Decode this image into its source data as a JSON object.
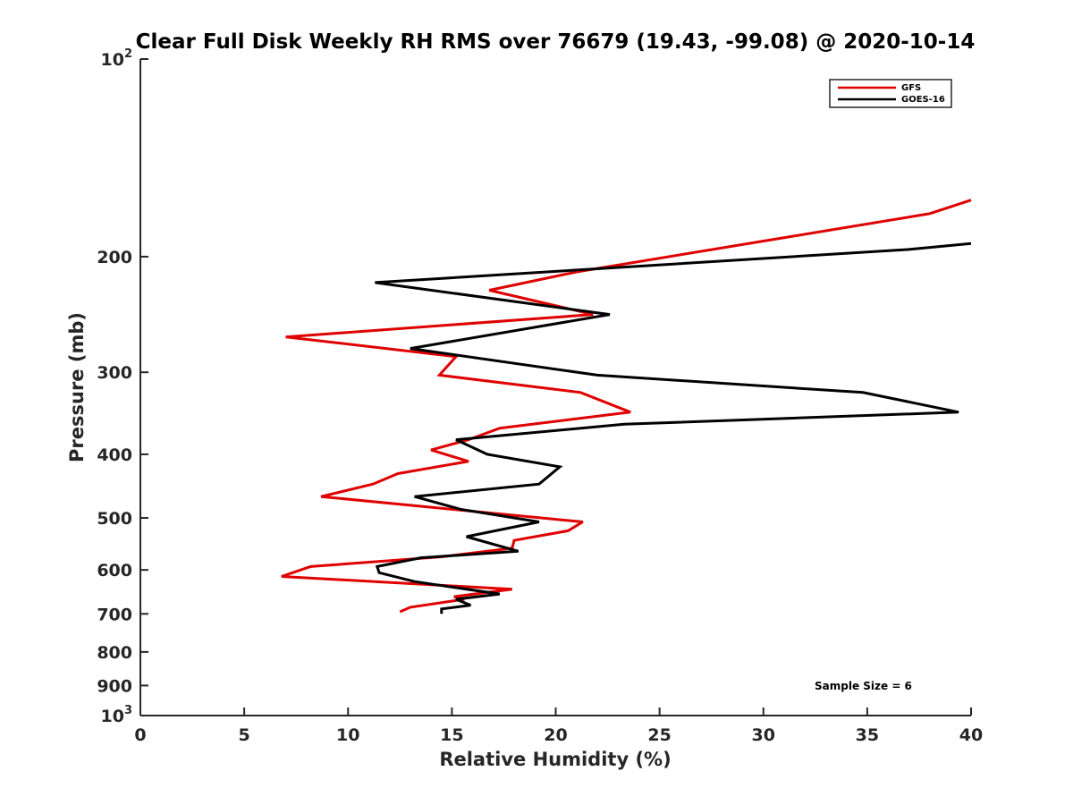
{
  "chart_data": {
    "type": "line",
    "title": "Clear Full Disk Weekly RH RMS over 76679 (19.43, -99.08) @ 2020-10-14",
    "xlabel": "Relative Humidity (%)",
    "ylabel": "Pressure (mb)",
    "xlim": [
      0,
      40
    ],
    "ylim": [
      100,
      1000
    ],
    "y_scale": "log",
    "y_reversed": true,
    "grid": false,
    "x_ticks": [
      "0",
      "5",
      "10",
      "15",
      "20",
      "25",
      "30",
      "35",
      "40"
    ],
    "y_ticks": [
      {
        "value": 100,
        "base": "10",
        "exp": "2"
      },
      {
        "value": 200,
        "label": "200"
      },
      {
        "value": 300,
        "label": "300"
      },
      {
        "value": 400,
        "label": "400"
      },
      {
        "value": 500,
        "label": "500"
      },
      {
        "value": 600,
        "label": "600"
      },
      {
        "value": 700,
        "label": "700"
      },
      {
        "value": 800,
        "label": "800"
      },
      {
        "value": 900,
        "label": "900"
      },
      {
        "value": 1000,
        "base": "10",
        "exp": "3"
      }
    ],
    "legend_position": "top-right",
    "series": [
      {
        "name": "GFS",
        "color": "#e00000",
        "points": [
          [
            40,
            164
          ],
          [
            38,
            172
          ],
          [
            21,
            211
          ],
          [
            16.8,
            225
          ],
          [
            21.8,
            245
          ],
          [
            7,
            265
          ],
          [
            15.2,
            284
          ],
          [
            14.4,
            303
          ],
          [
            21.2,
            322
          ],
          [
            23.6,
            345
          ],
          [
            17.3,
            365
          ],
          [
            15.8,
            380
          ],
          [
            14,
            394
          ],
          [
            15.8,
            410
          ],
          [
            12.4,
            428
          ],
          [
            11.2,
            444
          ],
          [
            8.7,
            464
          ],
          [
            21.3,
            507
          ],
          [
            20.6,
            523
          ],
          [
            18,
            541
          ],
          [
            17.9,
            556
          ],
          [
            14.5,
            573
          ],
          [
            8.2,
            593
          ],
          [
            6.8,
            614
          ],
          [
            17.9,
            642
          ],
          [
            15.1,
            659
          ],
          [
            15.6,
            665
          ],
          [
            13,
            684
          ],
          [
            12.5,
            695
          ]
        ]
      },
      {
        "name": "GOES-16",
        "color": "#000000",
        "points": [
          [
            40,
            191
          ],
          [
            37,
            195
          ],
          [
            11.3,
            219
          ],
          [
            22.6,
            245
          ],
          [
            13,
            276
          ],
          [
            22,
            303
          ],
          [
            34.8,
            322
          ],
          [
            39.4,
            345
          ],
          [
            23.3,
            360
          ],
          [
            15.2,
            380
          ],
          [
            16.7,
            400
          ],
          [
            20.2,
            418
          ],
          [
            19.2,
            444
          ],
          [
            13.2,
            464
          ],
          [
            15.4,
            485
          ],
          [
            19.2,
            507
          ],
          [
            15.7,
            534
          ],
          [
            18.2,
            562
          ],
          [
            13.5,
            575
          ],
          [
            11.4,
            593
          ],
          [
            11.5,
            606
          ],
          [
            13.2,
            625
          ],
          [
            17.3,
            653
          ],
          [
            15.2,
            665
          ],
          [
            15.9,
            679
          ],
          [
            14.5,
            688
          ],
          [
            14.5,
            700
          ]
        ]
      }
    ],
    "annotation": "Sample Size = 6"
  }
}
